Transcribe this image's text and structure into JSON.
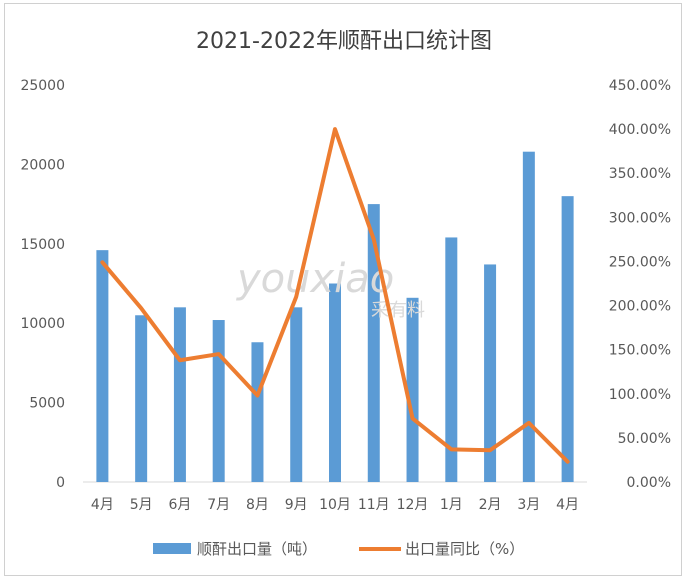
{
  "chart_data": {
    "type": "bar+line",
    "title": "2021-2022年顺酐出口统计图",
    "categories": [
      "4月",
      "5月",
      "6月",
      "7月",
      "8月",
      "9月",
      "10月",
      "11月",
      "12月",
      "1月",
      "2月",
      "3月",
      "4月"
    ],
    "series": [
      {
        "name": "顺酐出口量（吨）",
        "type": "bar",
        "axis": "left",
        "color": "#5b9bd5",
        "values": [
          14600,
          10500,
          11000,
          10200,
          8800,
          11000,
          12500,
          17500,
          11600,
          15400,
          13700,
          20800,
          18000
        ]
      },
      {
        "name": "出口量同比（%）",
        "type": "line",
        "axis": "right",
        "color": "#ed7d31",
        "values": [
          2.49,
          1.97,
          1.38,
          1.45,
          0.98,
          2.1,
          4.0,
          2.75,
          0.72,
          0.37,
          0.36,
          0.67,
          0.23
        ]
      }
    ],
    "left_axis": {
      "min": 0,
      "max": 25000,
      "ticks": [
        "0",
        "5000",
        "10000",
        "15000",
        "20000",
        "25000"
      ]
    },
    "right_axis": {
      "min": 0,
      "max": 4.5,
      "ticks": [
        "0.00%",
        "50.00%",
        "100.00%",
        "150.00%",
        "200.00%",
        "250.00%",
        "300.00%",
        "350.00%",
        "400.00%",
        "450.00%"
      ]
    },
    "grid": false,
    "legend_position": "bottom"
  },
  "watermark": {
    "text": "youxiao",
    "sub": "采有料"
  }
}
